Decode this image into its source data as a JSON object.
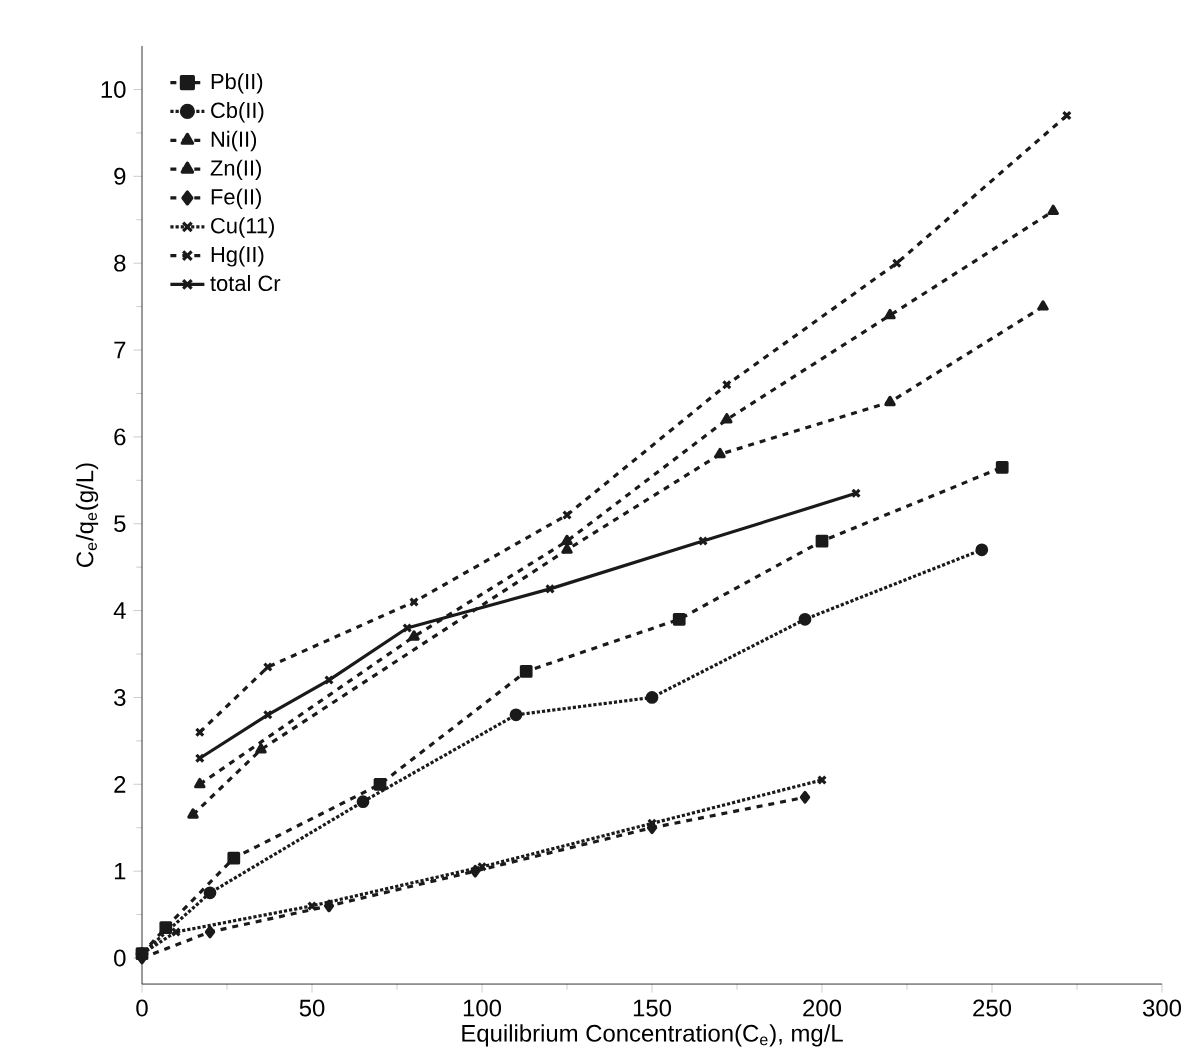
{
  "chart_data": {
    "type": "line",
    "xlabel": "Equilibrium Concentration(C$_{e}$), mg/L",
    "ylabel": "C$_{e}$/q$_{e}$(g/L)",
    "xlim": [
      0,
      300
    ],
    "ylim": [
      -0.3,
      10.5
    ],
    "xticks": [
      0,
      50,
      100,
      150,
      200,
      250,
      300
    ],
    "yticks": [
      0,
      1,
      2,
      3,
      4,
      5,
      6,
      7,
      8,
      9,
      10
    ],
    "grid": false,
    "legend": "top left",
    "series": [
      {
        "name": "Pb(II)",
        "color": "#1a1a1a",
        "marker": "square",
        "line_style": "dashed",
        "x": [
          0,
          7,
          27,
          70,
          113,
          158,
          200,
          253
        ],
        "values": [
          0.05,
          0.35,
          1.15,
          2.0,
          3.3,
          3.9,
          4.8,
          5.65
        ]
      },
      {
        "name": "Cb(II)",
        "color": "#1a1a1a",
        "marker": "circle",
        "line_style": "dotted",
        "x": [
          0,
          20,
          65,
          110,
          150,
          195,
          247
        ],
        "values": [
          0.05,
          0.75,
          1.8,
          2.8,
          3.0,
          3.9,
          4.7
        ]
      },
      {
        "name": "Ni(II)",
        "color": "#1a1a1a",
        "marker": "triangle",
        "line_style": "dashed",
        "x": [
          15,
          35,
          125,
          170,
          220,
          265
        ],
        "values": [
          1.65,
          2.4,
          4.7,
          5.8,
          6.4,
          7.5
        ]
      },
      {
        "name": "Zn(II)",
        "color": "#1a1a1a",
        "marker": "triangle",
        "line_style": "dashed",
        "x": [
          17,
          80,
          125,
          172,
          220,
          268
        ],
        "values": [
          2.0,
          3.7,
          4.8,
          6.2,
          7.4,
          8.6
        ]
      },
      {
        "name": "Fe(II)",
        "color": "#1a1a1a",
        "marker": "diamond",
        "line_style": "dashed",
        "x": [
          0,
          20,
          55,
          98,
          150,
          195
        ],
        "values": [
          0.0,
          0.3,
          0.6,
          1.0,
          1.5,
          1.85
        ]
      },
      {
        "name": "Cu(11)",
        "color": "#1a1a1a",
        "marker": "cross",
        "line_style": "dotted",
        "x": [
          0,
          10,
          50,
          100,
          150,
          200
        ],
        "values": [
          0.05,
          0.3,
          0.6,
          1.05,
          1.55,
          2.05
        ]
      },
      {
        "name": "Hg(II)",
        "color": "#1a1a1a",
        "marker": "cross",
        "line_style": "dashed",
        "x": [
          17,
          37,
          80,
          125,
          172,
          222,
          272
        ],
        "values": [
          2.6,
          3.35,
          4.1,
          5.1,
          6.6,
          8.0,
          9.7
        ]
      },
      {
        "name": "total Cr",
        "color": "#1a1a1a",
        "marker": "cross",
        "line_style": "solid",
        "x": [
          17,
          37,
          55,
          78,
          120,
          165,
          210
        ],
        "values": [
          2.3,
          2.8,
          3.2,
          3.8,
          4.25,
          4.8,
          5.35
        ]
      }
    ]
  }
}
